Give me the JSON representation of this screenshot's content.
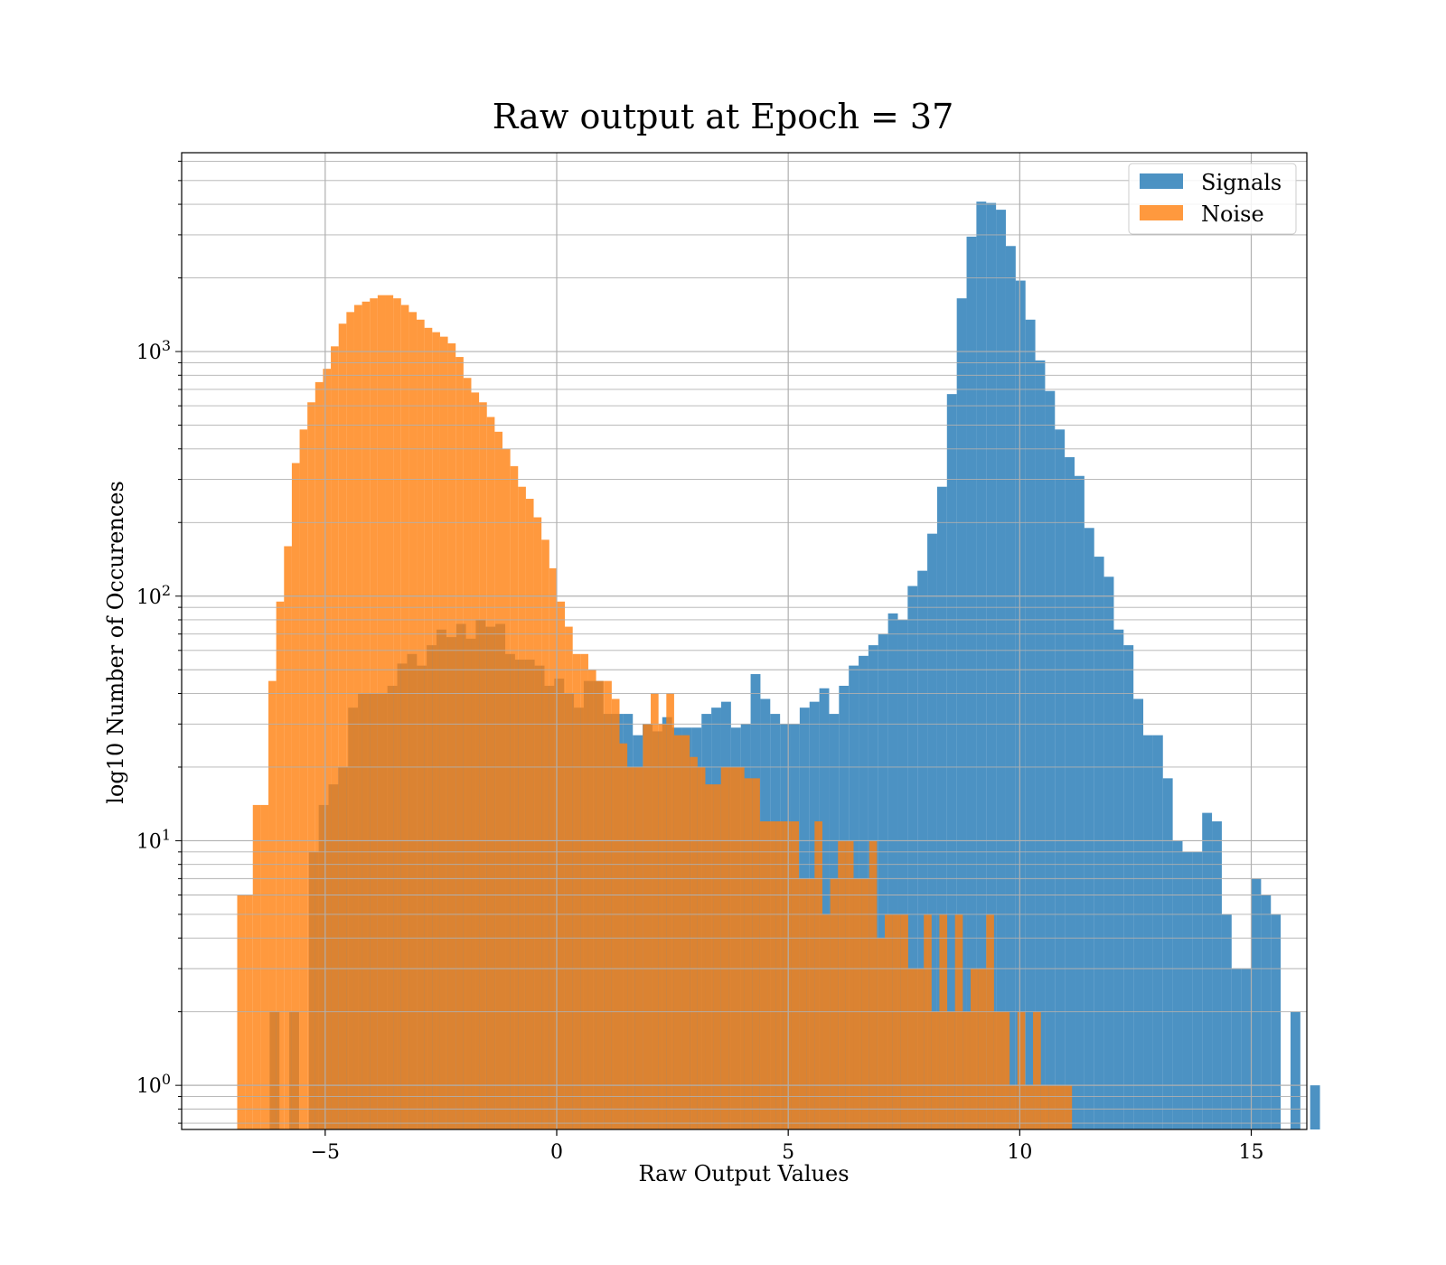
{
  "chart_data": {
    "type": "bar",
    "title": "Raw output at Epoch = 37",
    "xlabel": "Raw Output Values",
    "ylabel": "log10 Number of Occurences",
    "yscale": "log",
    "xlim": [
      -8.1,
      16.2
    ],
    "ylim": [
      0.66,
      6500
    ],
    "x_ticks": [
      -5,
      0,
      5,
      10,
      15
    ],
    "x_tick_labels": [
      "−5",
      "0",
      "5",
      "10",
      "15"
    ],
    "y_ticks": [
      {
        "value": 1,
        "base": "10",
        "exp": "0"
      },
      {
        "value": 10,
        "base": "10",
        "exp": "1"
      },
      {
        "value": 100,
        "base": "10",
        "exp": "2"
      },
      {
        "value": 1000,
        "base": "10",
        "exp": "3"
      }
    ],
    "grid": true,
    "legend_position": "upper-right",
    "series": [
      {
        "name": "Signals",
        "color": "#1f77b4",
        "alpha": 0.8,
        "bin_start": -6.2,
        "bin_width": 0.212,
        "counts": [
          2,
          0,
          2,
          0,
          9,
          14,
          17,
          20,
          35,
          40,
          40,
          40,
          43,
          53,
          58,
          52,
          63,
          73,
          68,
          77,
          67,
          80,
          75,
          77,
          58,
          55,
          55,
          52,
          43,
          46,
          40,
          35,
          45,
          45,
          33,
          33,
          33,
          27,
          30,
          28,
          32,
          29,
          29,
          29,
          33,
          35,
          37,
          29,
          30,
          48,
          38,
          33,
          30,
          30,
          35,
          37,
          42,
          33,
          43,
          52,
          57,
          63,
          70,
          85,
          80,
          110,
          127,
          180,
          280,
          670,
          1650,
          2950,
          4100,
          4050,
          3800,
          2700,
          1950,
          1350,
          920,
          690,
          480,
          370,
          310,
          190,
          145,
          120,
          73,
          63,
          38,
          27,
          27,
          18,
          10,
          9,
          9,
          13,
          12,
          5,
          3,
          3,
          7,
          6,
          5,
          0,
          2,
          0,
          1
        ]
      },
      {
        "name": "Noise",
        "color": "#ff7f0e",
        "alpha": 0.8,
        "bin_start": -6.9,
        "bin_width": 0.1685,
        "counts": [
          6,
          6,
          14,
          14,
          45,
          95,
          160,
          350,
          480,
          620,
          750,
          850,
          1050,
          1300,
          1450,
          1550,
          1600,
          1650,
          1700,
          1700,
          1650,
          1550,
          1450,
          1350,
          1250,
          1200,
          1150,
          1080,
          950,
          780,
          680,
          620,
          540,
          470,
          400,
          340,
          280,
          250,
          210,
          170,
          130,
          95,
          75,
          58,
          58,
          50,
          45,
          45,
          38,
          25,
          20,
          20,
          30,
          40,
          30,
          40,
          27,
          27,
          22,
          20,
          17,
          17,
          20,
          20,
          20,
          18,
          18,
          12,
          12,
          12,
          12,
          12,
          7,
          7,
          12,
          5,
          7,
          10,
          10,
          7,
          7,
          10,
          4,
          5,
          5,
          5,
          3,
          3,
          5,
          2,
          5,
          2,
          5,
          2,
          3,
          3,
          5,
          2,
          2,
          1,
          2,
          1,
          2,
          1,
          1,
          1,
          1
        ]
      }
    ]
  }
}
